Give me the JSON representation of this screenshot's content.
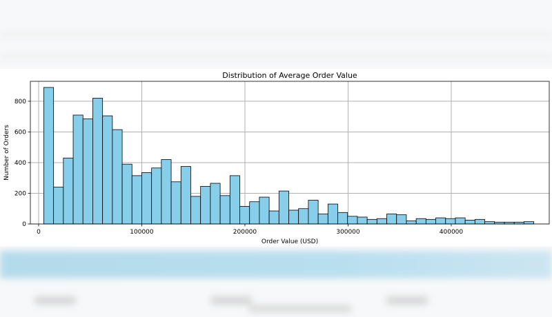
{
  "chart_data": {
    "type": "bar",
    "title": "Distribution of Average Order Value",
    "xlabel": "Order Value (USD)",
    "ylabel": "Number of Orders",
    "xlim": [
      -8000,
      495000
    ],
    "ylim": [
      0,
      930
    ],
    "grid": true,
    "bar_color": "#87CEEB",
    "edge_color": "#000000",
    "grid_color": "#b0b0b0",
    "xticks": [
      0,
      100000,
      200000,
      300000,
      400000
    ],
    "xtick_labels": [
      "0",
      "100000",
      "200000",
      "300000",
      "400000"
    ],
    "yticks": [
      0,
      200,
      400,
      600,
      800
    ],
    "ytick_labels": [
      "0",
      "200",
      "400",
      "600",
      "800"
    ],
    "bin_start": 5000,
    "bin_width": 9500,
    "values": [
      890,
      240,
      430,
      710,
      685,
      820,
      705,
      615,
      390,
      315,
      335,
      365,
      420,
      275,
      375,
      180,
      245,
      265,
      185,
      315,
      115,
      145,
      175,
      85,
      215,
      90,
      100,
      155,
      65,
      130,
      75,
      50,
      45,
      30,
      35,
      65,
      60,
      20,
      35,
      30,
      40,
      35,
      40,
      25,
      30,
      15,
      12,
      12,
      12,
      15
    ]
  }
}
